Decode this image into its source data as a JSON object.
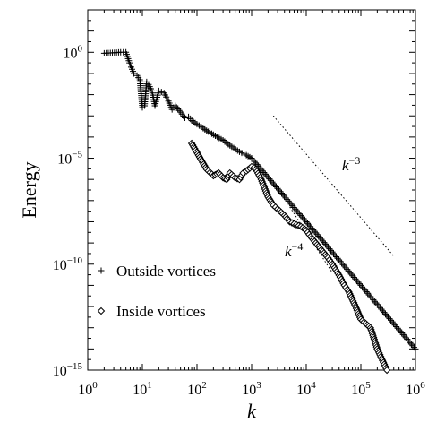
{
  "chart_data": {
    "type": "scatter",
    "title": "",
    "xlabel": "k",
    "ylabel": "Energy",
    "xscale": "log",
    "yscale": "log",
    "xlim": [
      1,
      1000000
    ],
    "ylim": [
      1e-15,
      100
    ],
    "grid": false,
    "legend_position": "bottom-left",
    "x_ticks": [
      {
        "value": 1,
        "base": "10",
        "exp": "0"
      },
      {
        "value": 10,
        "base": "10",
        "exp": "1"
      },
      {
        "value": 100,
        "base": "10",
        "exp": "2"
      },
      {
        "value": 1000,
        "base": "10",
        "exp": "3"
      },
      {
        "value": 10000,
        "base": "10",
        "exp": "4"
      },
      {
        "value": 100000,
        "base": "10",
        "exp": "5"
      },
      {
        "value": 1000000,
        "base": "10",
        "exp": "6"
      }
    ],
    "y_ticks": [
      {
        "value": 1,
        "base": "10",
        "exp": "0"
      },
      {
        "value": 1e-05,
        "base": "10",
        "exp": "−5"
      },
      {
        "value": 1e-10,
        "base": "10",
        "exp": "−10"
      },
      {
        "value": 1e-15,
        "base": "10",
        "exp": "−15"
      }
    ],
    "series": [
      {
        "name": "Outside vortices",
        "marker": "plus",
        "x": [
          2,
          4,
          5,
          6,
          7,
          8,
          9,
          10,
          11,
          12,
          13,
          15,
          17,
          20,
          25,
          30,
          35,
          40,
          50,
          60,
          70,
          80,
          100,
          120,
          150,
          200,
          300,
          400,
          600,
          800,
          1000,
          2000,
          5000,
          10000,
          20000,
          50000,
          100000,
          200000,
          500000,
          1000000
        ],
        "y": [
          0.9,
          1.0,
          1.0,
          0.25,
          0.1,
          0.08,
          0.05,
          0.0025,
          0.003,
          0.04,
          0.03,
          0.015,
          0.003,
          0.015,
          0.012,
          0.005,
          0.002,
          0.003,
          0.0015,
          0.0008,
          0.0009,
          0.0006,
          0.0004,
          0.0003,
          0.0002,
          0.00013,
          7e-05,
          4e-05,
          2e-05,
          1.4e-05,
          1e-05,
          1.25e-06,
          8e-08,
          1e-08,
          1.25e-09,
          8e-11,
          1e-11,
          1.25e-12,
          8e-14,
          1e-14
        ]
      },
      {
        "name": "Inside vortices",
        "marker": "diamond",
        "x": [
          80,
          150,
          200,
          250,
          300,
          350,
          400,
          500,
          600,
          700,
          800,
          1000,
          1100,
          1200,
          1500,
          2000,
          2500,
          3000,
          4000,
          5000,
          6000,
          8000,
          10000,
          12000,
          15000,
          20000,
          25000,
          30000,
          40000,
          50000,
          60000,
          80000,
          100000,
          150000,
          200000,
          300000
        ],
        "y": [
          5e-05,
          3e-06,
          1.5e-06,
          2e-06,
          1.2e-06,
          1e-06,
          2e-06,
          1.2e-06,
          1e-06,
          2e-06,
          2.5e-06,
          4e-06,
          3.5e-06,
          3e-06,
          1e-06,
          1.5e-07,
          6e-08,
          4e-08,
          2e-08,
          1e-08,
          8e-09,
          6e-09,
          4e-09,
          2e-09,
          1e-09,
          4e-10,
          2e-10,
          1e-10,
          3e-11,
          1e-11,
          5e-12,
          1e-12,
          2.5e-13,
          1e-13,
          1e-14,
          1e-15
        ]
      }
    ],
    "annotations": [
      {
        "base": "k",
        "exp": "−3"
      },
      {
        "base": "k",
        "exp": "−4"
      }
    ]
  }
}
